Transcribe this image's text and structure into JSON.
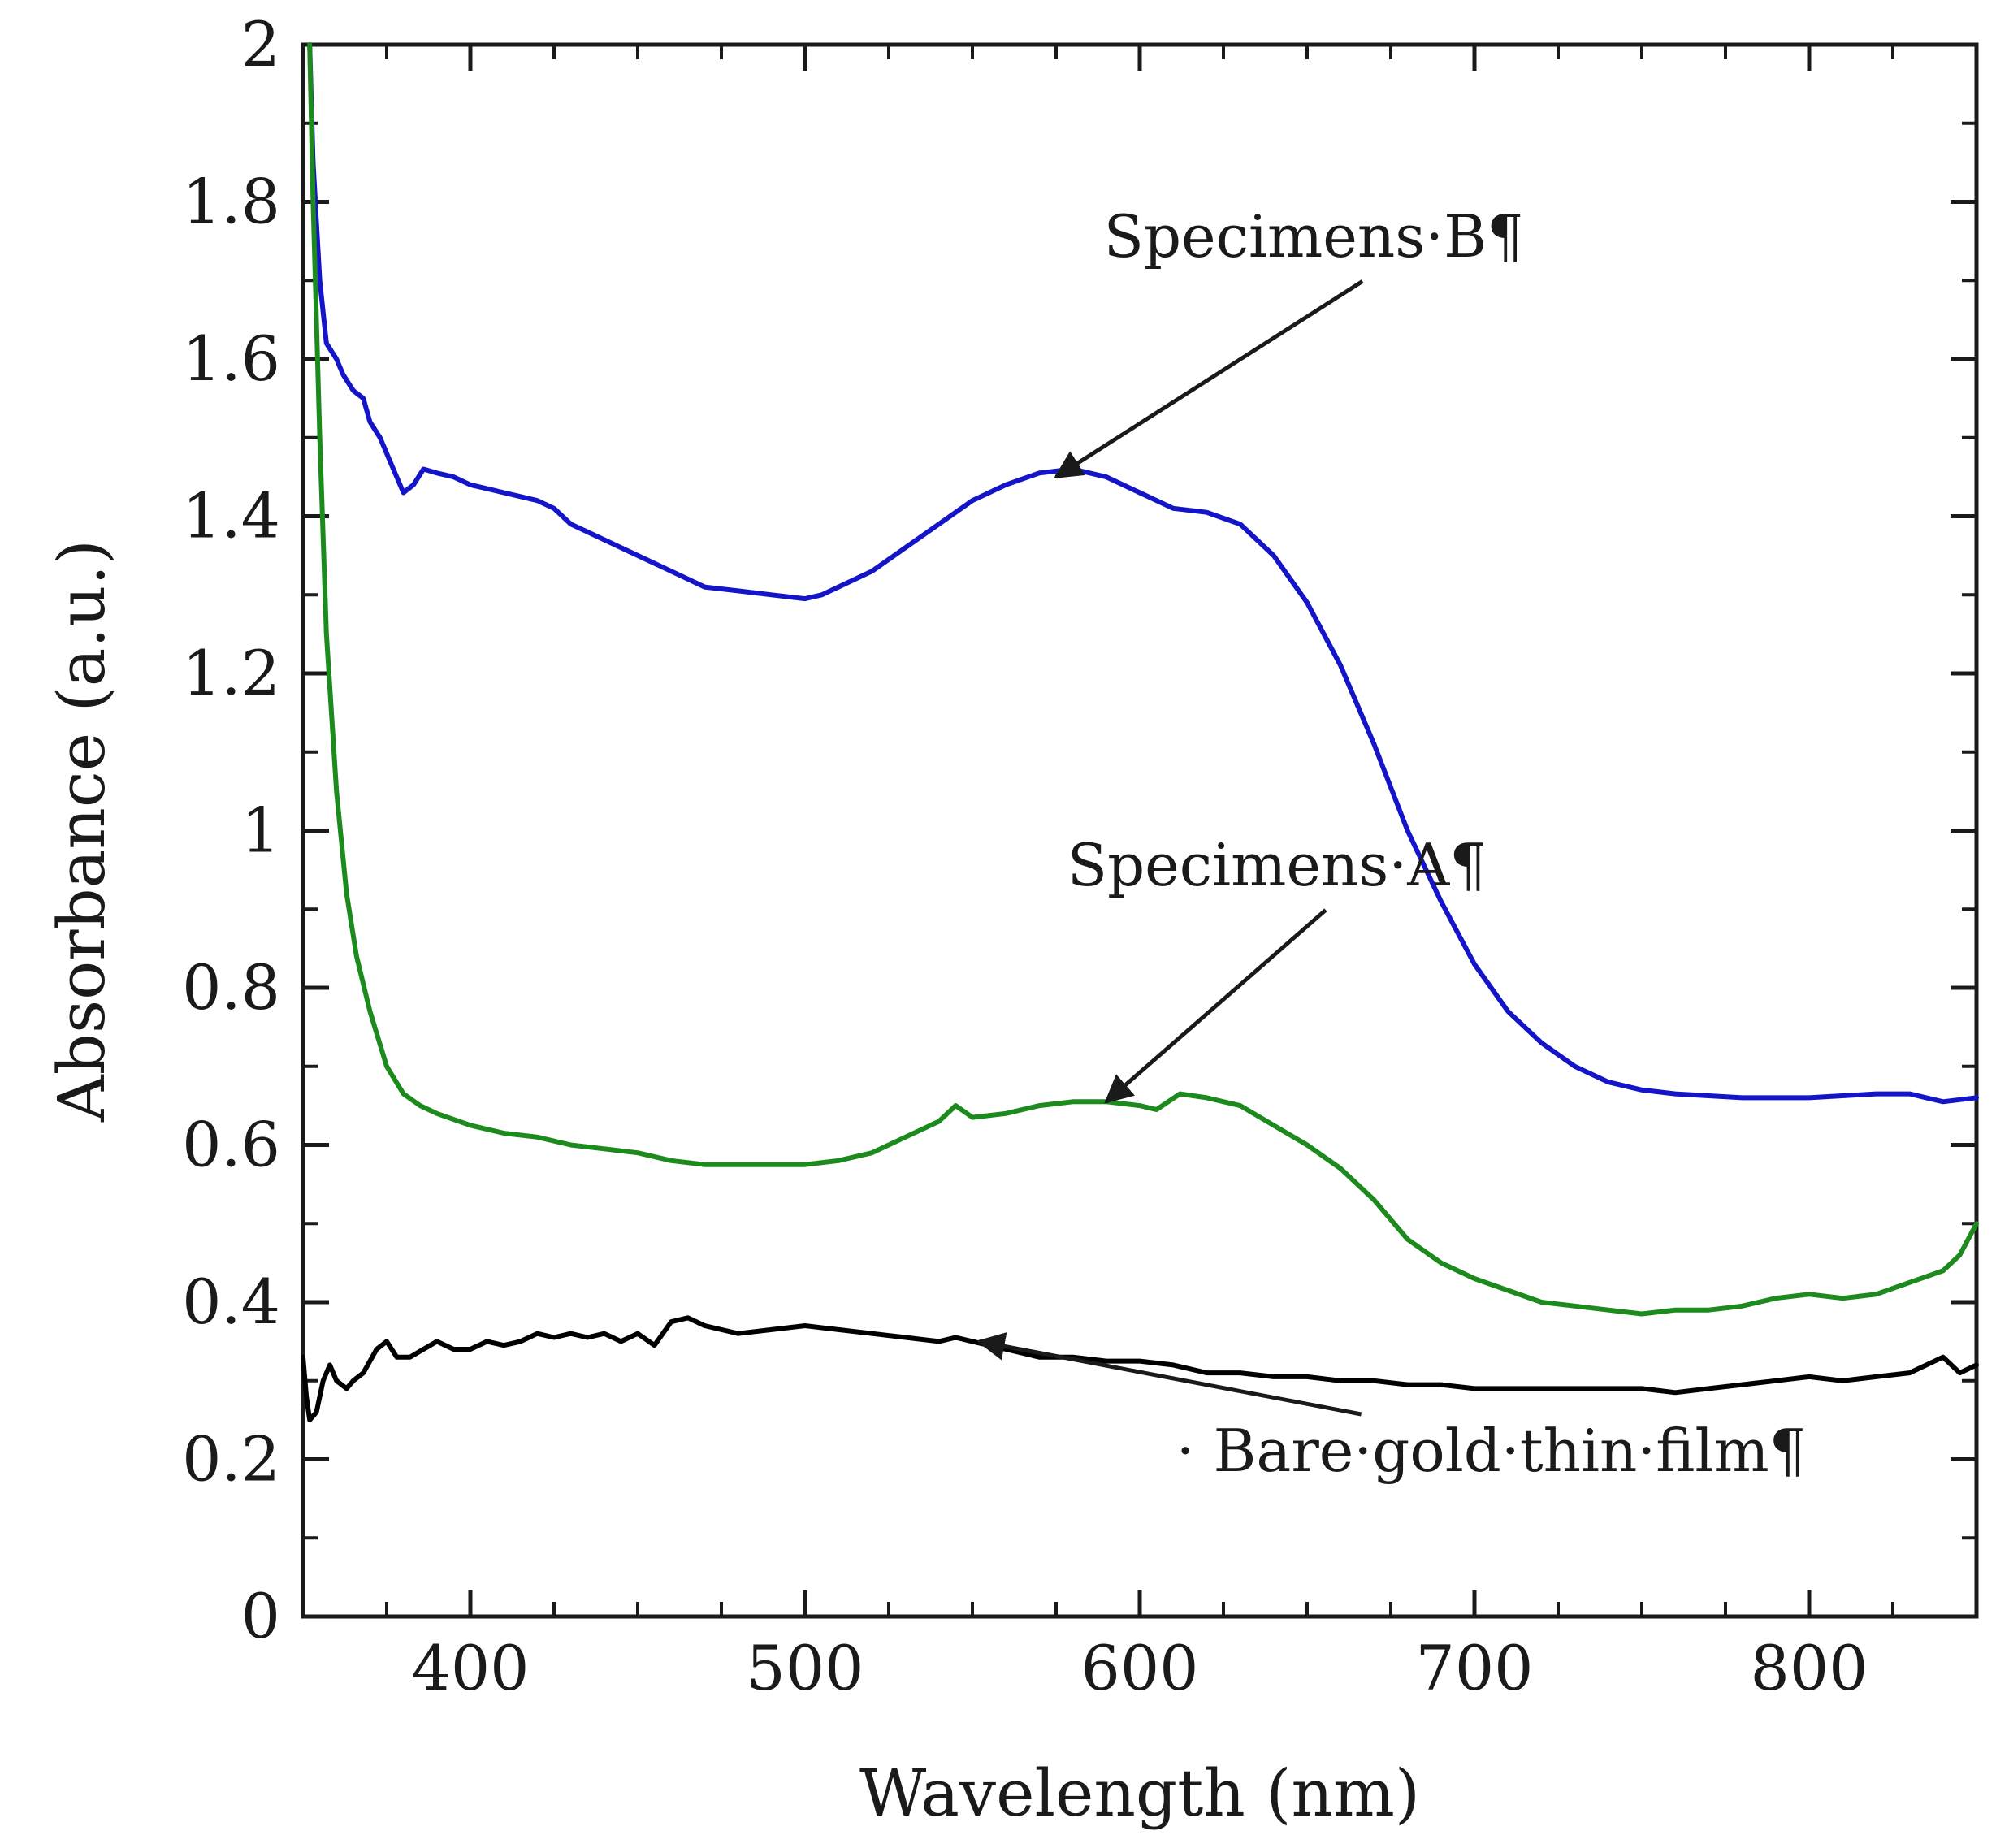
{
  "chart_data": {
    "type": "line",
    "xlabel": "Wavelength (nm)",
    "ylabel": "Absorbance (a.u.)",
    "xlim": [
      350,
      850
    ],
    "ylim": [
      0,
      2
    ],
    "x_ticks": [
      400,
      500,
      600,
      700,
      800
    ],
    "x_tick_labels": [
      "400",
      "500",
      "600",
      "700",
      "800"
    ],
    "y_ticks": [
      0,
      0.2,
      0.4,
      0.6,
      0.8,
      1,
      1.2,
      1.4,
      1.6,
      1.8,
      2
    ],
    "y_tick_labels": [
      "0",
      "0.2",
      "0.4",
      "0.6",
      "0.8",
      "1",
      "1.2",
      "1.4",
      "1.6",
      "1.8",
      "2"
    ],
    "grid": false,
    "series": [
      {
        "color": "#1414c8",
        "points": [
          [
            352,
            2.0
          ],
          [
            353,
            1.85
          ],
          [
            355,
            1.7
          ],
          [
            357,
            1.62
          ],
          [
            360,
            1.6
          ],
          [
            362,
            1.58
          ],
          [
            365,
            1.56
          ],
          [
            368,
            1.55
          ],
          [
            370,
            1.52
          ],
          [
            373,
            1.5
          ],
          [
            376,
            1.47
          ],
          [
            380,
            1.43
          ],
          [
            383,
            1.44
          ],
          [
            386,
            1.46
          ],
          [
            390,
            1.455
          ],
          [
            395,
            1.45
          ],
          [
            400,
            1.44
          ],
          [
            405,
            1.435
          ],
          [
            410,
            1.43
          ],
          [
            415,
            1.425
          ],
          [
            420,
            1.42
          ],
          [
            425,
            1.41
          ],
          [
            430,
            1.39
          ],
          [
            440,
            1.37
          ],
          [
            450,
            1.35
          ],
          [
            460,
            1.33
          ],
          [
            470,
            1.31
          ],
          [
            480,
            1.305
          ],
          [
            490,
            1.3
          ],
          [
            500,
            1.295
          ],
          [
            505,
            1.3
          ],
          [
            510,
            1.31
          ],
          [
            520,
            1.33
          ],
          [
            530,
            1.36
          ],
          [
            540,
            1.39
          ],
          [
            550,
            1.42
          ],
          [
            560,
            1.44
          ],
          [
            570,
            1.455
          ],
          [
            580,
            1.46
          ],
          [
            590,
            1.45
          ],
          [
            600,
            1.43
          ],
          [
            610,
            1.41
          ],
          [
            620,
            1.405
          ],
          [
            630,
            1.39
          ],
          [
            640,
            1.35
          ],
          [
            650,
            1.29
          ],
          [
            660,
            1.21
          ],
          [
            670,
            1.11
          ],
          [
            680,
            1.0
          ],
          [
            690,
            0.91
          ],
          [
            700,
            0.83
          ],
          [
            710,
            0.77
          ],
          [
            720,
            0.73
          ],
          [
            730,
            0.7
          ],
          [
            740,
            0.68
          ],
          [
            750,
            0.67
          ],
          [
            760,
            0.665
          ],
          [
            780,
            0.66
          ],
          [
            800,
            0.66
          ],
          [
            820,
            0.665
          ],
          [
            830,
            0.665
          ],
          [
            840,
            0.655
          ],
          [
            850,
            0.66
          ]
        ]
      },
      {
        "color": "#1c8a1c",
        "points": [
          [
            352,
            2.0
          ],
          [
            353,
            1.8
          ],
          [
            355,
            1.5
          ],
          [
            357,
            1.25
          ],
          [
            360,
            1.05
          ],
          [
            363,
            0.92
          ],
          [
            366,
            0.84
          ],
          [
            370,
            0.77
          ],
          [
            375,
            0.7
          ],
          [
            380,
            0.665
          ],
          [
            385,
            0.65
          ],
          [
            390,
            0.64
          ],
          [
            400,
            0.625
          ],
          [
            410,
            0.615
          ],
          [
            420,
            0.61
          ],
          [
            430,
            0.6
          ],
          [
            440,
            0.595
          ],
          [
            450,
            0.59
          ],
          [
            460,
            0.58
          ],
          [
            470,
            0.575
          ],
          [
            480,
            0.575
          ],
          [
            490,
            0.575
          ],
          [
            500,
            0.575
          ],
          [
            510,
            0.58
          ],
          [
            520,
            0.59
          ],
          [
            530,
            0.61
          ],
          [
            540,
            0.63
          ],
          [
            545,
            0.65
          ],
          [
            550,
            0.635
          ],
          [
            560,
            0.64
          ],
          [
            570,
            0.65
          ],
          [
            580,
            0.655
          ],
          [
            590,
            0.655
          ],
          [
            600,
            0.65
          ],
          [
            605,
            0.645
          ],
          [
            612,
            0.665
          ],
          [
            620,
            0.66
          ],
          [
            630,
            0.65
          ],
          [
            640,
            0.625
          ],
          [
            650,
            0.6
          ],
          [
            660,
            0.57
          ],
          [
            670,
            0.53
          ],
          [
            680,
            0.48
          ],
          [
            690,
            0.45
          ],
          [
            700,
            0.43
          ],
          [
            710,
            0.415
          ],
          [
            720,
            0.4
          ],
          [
            730,
            0.395
          ],
          [
            740,
            0.39
          ],
          [
            750,
            0.385
          ],
          [
            760,
            0.39
          ],
          [
            770,
            0.39
          ],
          [
            780,
            0.395
          ],
          [
            790,
            0.405
          ],
          [
            800,
            0.41
          ],
          [
            810,
            0.405
          ],
          [
            820,
            0.41
          ],
          [
            830,
            0.425
          ],
          [
            840,
            0.44
          ],
          [
            845,
            0.46
          ],
          [
            850,
            0.5
          ]
        ]
      },
      {
        "color": "#000000",
        "points": [
          [
            350,
            0.33
          ],
          [
            351,
            0.28
          ],
          [
            352,
            0.25
          ],
          [
            354,
            0.26
          ],
          [
            356,
            0.3
          ],
          [
            358,
            0.32
          ],
          [
            360,
            0.3
          ],
          [
            363,
            0.29
          ],
          [
            365,
            0.3
          ],
          [
            368,
            0.31
          ],
          [
            372,
            0.34
          ],
          [
            375,
            0.35
          ],
          [
            378,
            0.33
          ],
          [
            382,
            0.33
          ],
          [
            386,
            0.34
          ],
          [
            390,
            0.35
          ],
          [
            395,
            0.34
          ],
          [
            400,
            0.34
          ],
          [
            405,
            0.35
          ],
          [
            410,
            0.345
          ],
          [
            415,
            0.35
          ],
          [
            420,
            0.36
          ],
          [
            425,
            0.355
          ],
          [
            430,
            0.36
          ],
          [
            435,
            0.355
          ],
          [
            440,
            0.36
          ],
          [
            445,
            0.35
          ],
          [
            450,
            0.36
          ],
          [
            455,
            0.345
          ],
          [
            460,
            0.375
          ],
          [
            465,
            0.38
          ],
          [
            470,
            0.37
          ],
          [
            480,
            0.36
          ],
          [
            490,
            0.365
          ],
          [
            500,
            0.37
          ],
          [
            510,
            0.365
          ],
          [
            520,
            0.36
          ],
          [
            530,
            0.355
          ],
          [
            540,
            0.35
          ],
          [
            545,
            0.355
          ],
          [
            550,
            0.35
          ],
          [
            560,
            0.34
          ],
          [
            570,
            0.33
          ],
          [
            580,
            0.33
          ],
          [
            590,
            0.325
          ],
          [
            600,
            0.325
          ],
          [
            610,
            0.32
          ],
          [
            620,
            0.31
          ],
          [
            630,
            0.31
          ],
          [
            640,
            0.305
          ],
          [
            650,
            0.305
          ],
          [
            660,
            0.3
          ],
          [
            670,
            0.3
          ],
          [
            680,
            0.295
          ],
          [
            690,
            0.295
          ],
          [
            700,
            0.29
          ],
          [
            710,
            0.29
          ],
          [
            720,
            0.29
          ],
          [
            730,
            0.29
          ],
          [
            740,
            0.29
          ],
          [
            750,
            0.29
          ],
          [
            760,
            0.285
          ],
          [
            770,
            0.29
          ],
          [
            780,
            0.295
          ],
          [
            790,
            0.3
          ],
          [
            800,
            0.305
          ],
          [
            810,
            0.3
          ],
          [
            820,
            0.305
          ],
          [
            830,
            0.31
          ],
          [
            840,
            0.33
          ],
          [
            845,
            0.31
          ],
          [
            850,
            0.32
          ]
        ]
      }
    ],
    "annotations": [
      {
        "text": "Specimens·B¶",
        "point_to": [
          575,
          1.45
        ],
        "text_anchor": [
          652,
          1.73
        ]
      },
      {
        "text": "Specimens·A¶",
        "point_to": [
          590,
          0.655
        ],
        "text_anchor": [
          641,
          0.93
        ]
      },
      {
        "text": "· Bare·gold·thin·film¶",
        "point_to": [
          552,
          0.35
        ],
        "text_anchor": [
          705,
          0.185
        ]
      }
    ]
  }
}
